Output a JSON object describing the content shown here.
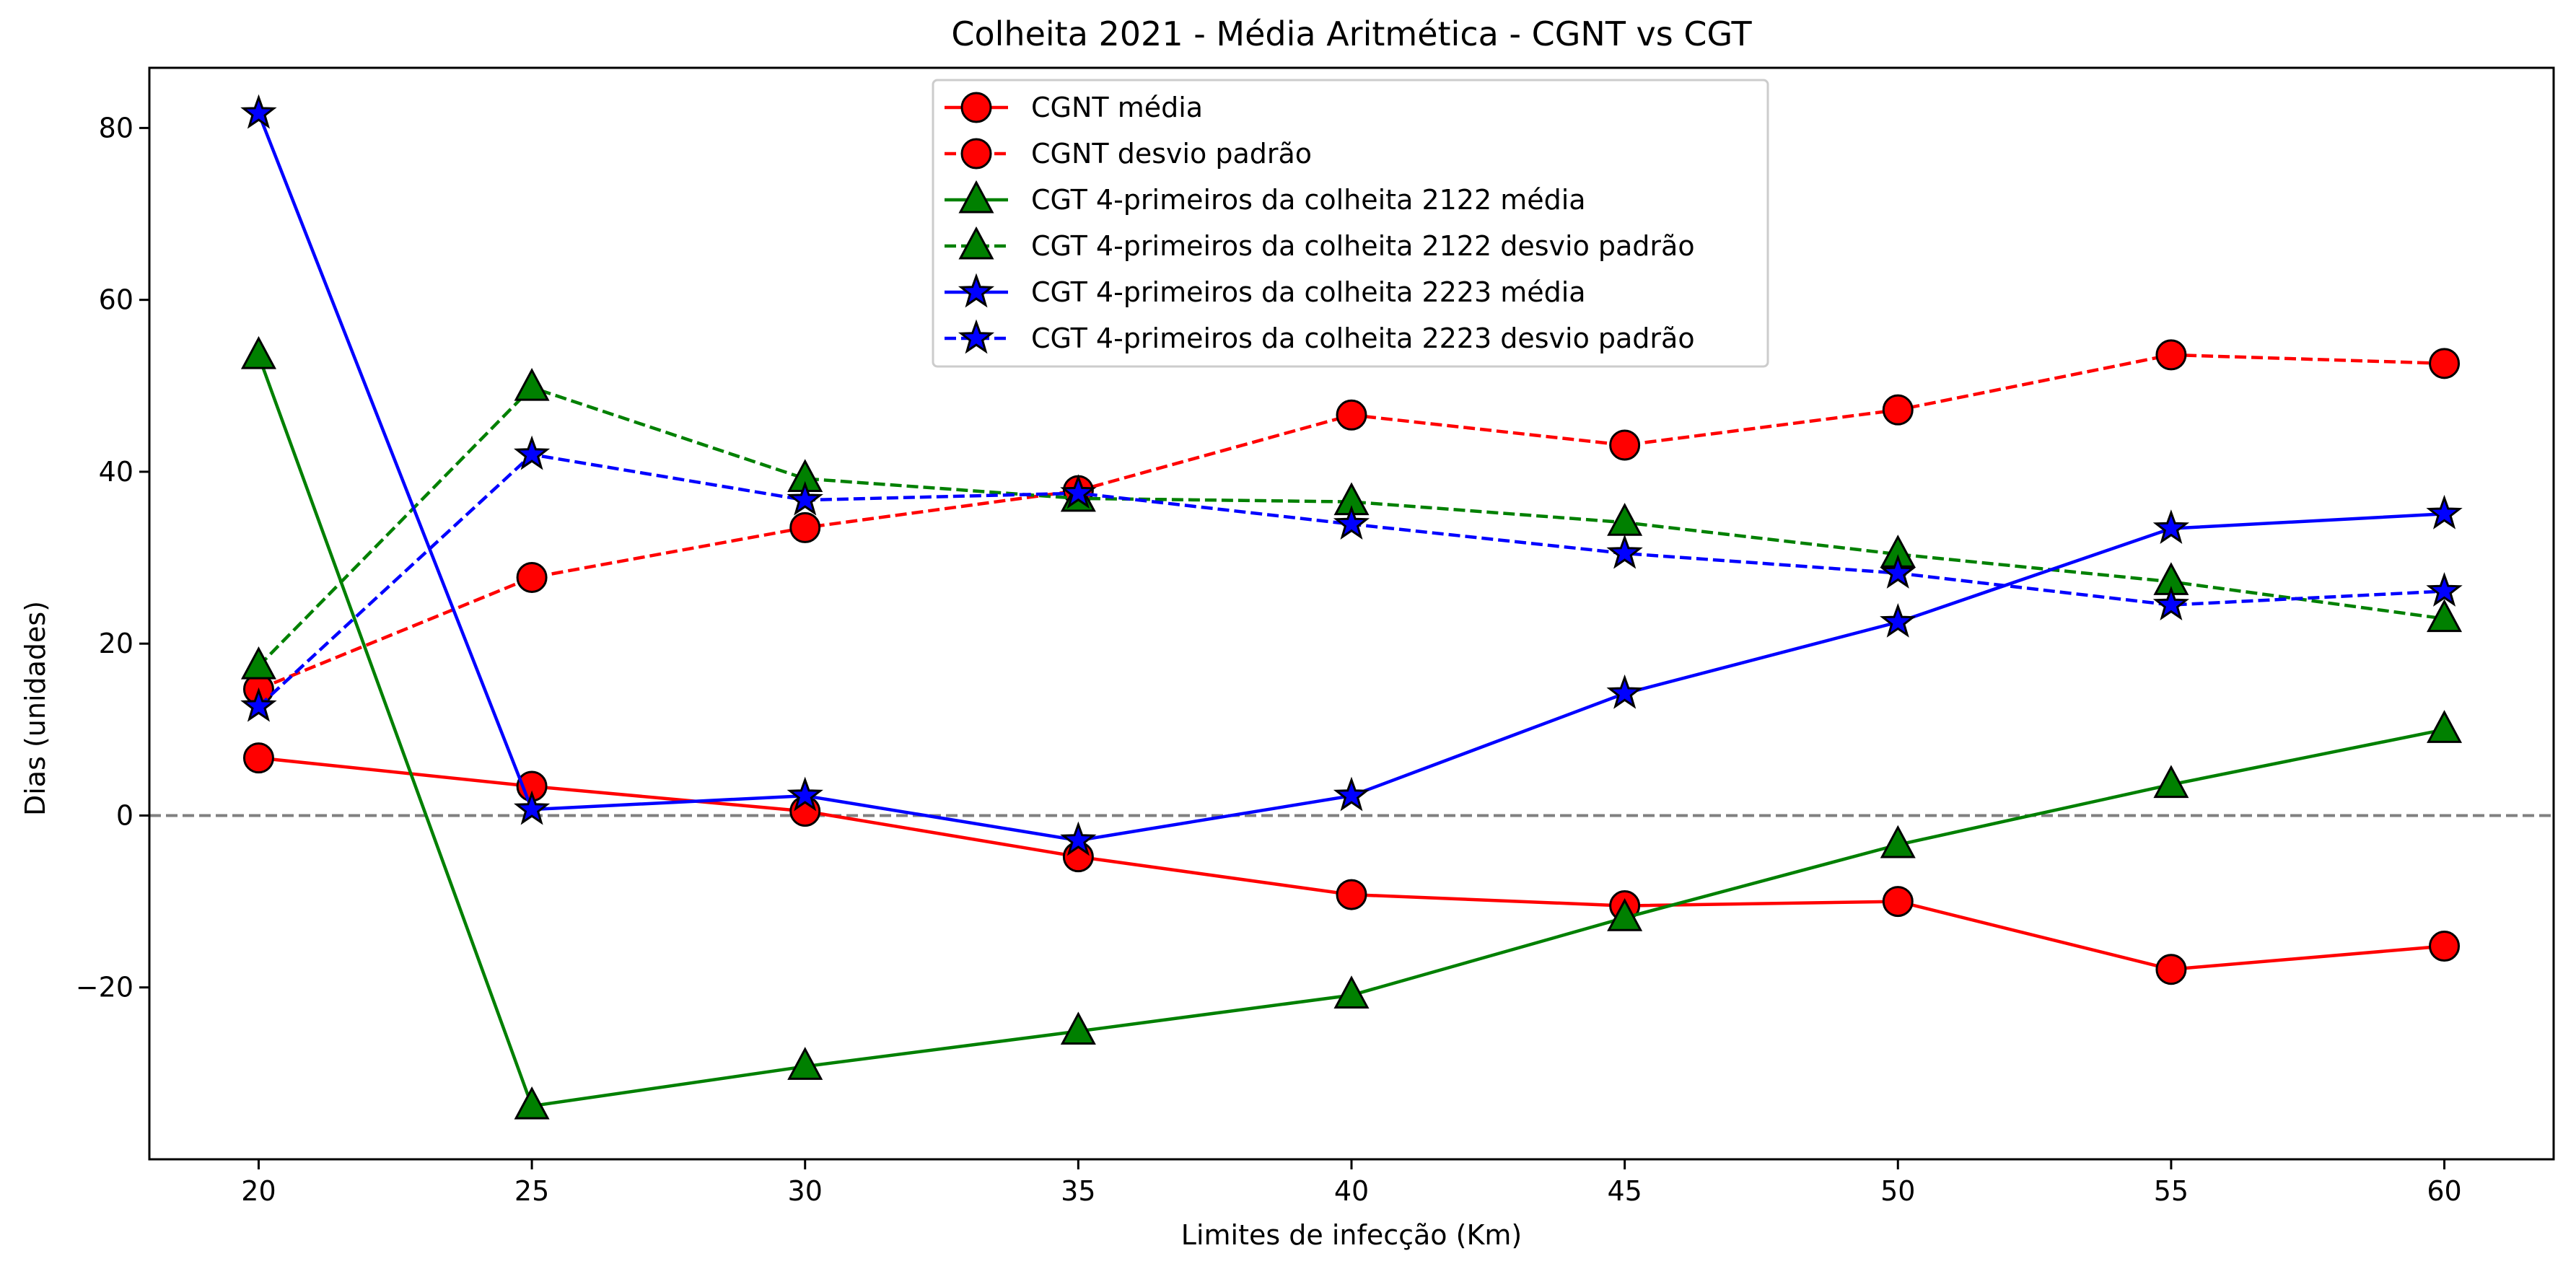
{
  "chart_data": {
    "type": "line",
    "title": "Colheita 2021 - Média Aritmética - CGNT vs CGT",
    "xlabel": "Limites de infecção (Km)",
    "ylabel": "Dias (unidades)",
    "x": [
      20,
      25,
      30,
      35,
      40,
      45,
      50,
      55,
      60
    ],
    "xlim": [
      18,
      62
    ],
    "ylim": [
      -40,
      87
    ],
    "x_ticks": [
      "20",
      "25",
      "30",
      "35",
      "40",
      "45",
      "50",
      "55",
      "60"
    ],
    "y_ticks": [
      {
        "value": -20,
        "label": "−20"
      },
      {
        "value": 0,
        "label": "0"
      },
      {
        "value": 20,
        "label": "20"
      },
      {
        "value": 40,
        "label": "40"
      },
      {
        "value": 60,
        "label": "60"
      },
      {
        "value": 80,
        "label": "80"
      }
    ],
    "grid": false,
    "legend_position": "upper-center",
    "reference_line": {
      "y": 0,
      "color": "#808080",
      "style": "dashed"
    },
    "series": [
      {
        "name": "CGNT média",
        "color": "#ff0000",
        "marker": "circle",
        "linestyle": "solid",
        "values": [
          6.7,
          3.4,
          0.5,
          -4.8,
          -9.2,
          -10.5,
          -10.0,
          -17.9,
          -15.2
        ]
      },
      {
        "name": "CGNT desvio padrão",
        "color": "#ff0000",
        "marker": "circle",
        "linestyle": "dashed",
        "values": [
          14.7,
          27.7,
          33.5,
          37.8,
          46.6,
          43.1,
          47.2,
          53.6,
          52.6
        ]
      },
      {
        "name": "CGT 4-primeiros da colheita 2122 média",
        "color": "#008000",
        "marker": "triangle",
        "linestyle": "solid",
        "values": [
          53.5,
          -33.8,
          -29.2,
          -25.1,
          -20.9,
          -11.9,
          -3.4,
          3.6,
          10.0
        ]
      },
      {
        "name": "CGT 4-primeiros da colheita 2122 desvio padrão",
        "color": "#008000",
        "marker": "triangle",
        "linestyle": "dashed",
        "values": [
          17.4,
          49.8,
          39.2,
          36.9,
          36.5,
          34.1,
          30.4,
          27.2,
          22.9
        ]
      },
      {
        "name": "CGT 4-primeiros da colheita 2223 média",
        "color": "#0000ff",
        "marker": "star",
        "linestyle": "solid",
        "values": [
          81.7,
          0.7,
          2.3,
          -2.9,
          2.3,
          14.2,
          22.5,
          33.4,
          35.1
        ]
      },
      {
        "name": "CGT 4-primeiros da colheita 2223 desvio padrão",
        "color": "#0000ff",
        "marker": "star",
        "linestyle": "dashed",
        "values": [
          12.7,
          42.0,
          36.7,
          37.5,
          33.9,
          30.5,
          28.2,
          24.5,
          26.1
        ]
      }
    ]
  }
}
